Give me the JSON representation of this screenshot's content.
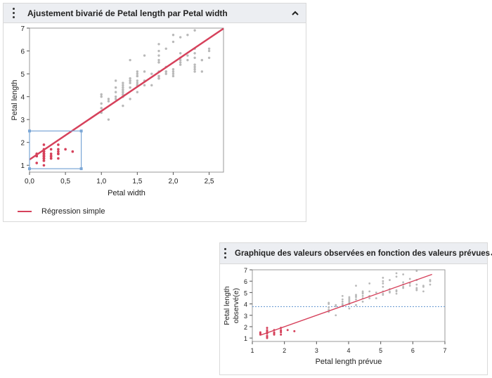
{
  "panel1": {
    "title": "Ajustement bivarié de Petal length par Petal width",
    "legend_label": "Régression simple"
  },
  "panel2": {
    "title": "Graphique des valeurs observées en fonction des valeurs prévues"
  },
  "colors": {
    "header_bg": "#eceef2",
    "regression_line": "#d6415b",
    "selected_points": "#d6415b",
    "unselected_points": "#b9b9b9",
    "selection_box": "#7aa6d6",
    "mean_line": "#6f9fd4"
  },
  "chart_data": [
    {
      "type": "scatter",
      "xlabel": "Petal width",
      "ylabel": "Petal length",
      "xlim": [
        0,
        2.7
      ],
      "ylim": [
        0.7,
        7
      ],
      "xticks": [
        "0,0",
        "0,5",
        "1,0",
        "1,5",
        "2,0",
        "2,5"
      ],
      "yticks": [
        "1",
        "2",
        "3",
        "4",
        "5",
        "6",
        "7"
      ],
      "regression_line": {
        "x": [
          0,
          2.7
        ],
        "y": [
          1.25,
          6.98
        ]
      },
      "selection_box": {
        "x": [
          0,
          0.72
        ],
        "y": [
          0.85,
          2.5
        ]
      },
      "series": [
        {
          "points": [
            [
              0.2,
              1.4
            ],
            [
              0.2,
              1.4
            ],
            [
              0.2,
              1.3
            ],
            [
              0.2,
              1.5
            ],
            [
              0.2,
              1.4
            ],
            [
              0.4,
              1.7
            ],
            [
              0.3,
              1.4
            ],
            [
              0.2,
              1.5
            ],
            [
              0.2,
              1.4
            ],
            [
              0.1,
              1.5
            ],
            [
              0.2,
              1.5
            ],
            [
              0.2,
              1.6
            ],
            [
              0.1,
              1.4
            ],
            [
              0.1,
              1.1
            ],
            [
              0.2,
              1.2
            ],
            [
              0.4,
              1.5
            ],
            [
              0.4,
              1.3
            ],
            [
              0.3,
              1.4
            ],
            [
              0.3,
              1.7
            ],
            [
              0.3,
              1.5
            ],
            [
              0.2,
              1.7
            ],
            [
              0.4,
              1.5
            ],
            [
              0.2,
              1.0
            ],
            [
              0.5,
              1.7
            ],
            [
              0.2,
              1.9
            ],
            [
              0.2,
              1.6
            ],
            [
              0.4,
              1.6
            ],
            [
              0.2,
              1.5
            ],
            [
              0.2,
              1.4
            ],
            [
              0.2,
              1.6
            ],
            [
              0.2,
              1.6
            ],
            [
              0.4,
              1.5
            ],
            [
              0.1,
              1.5
            ],
            [
              0.2,
              1.4
            ],
            [
              0.2,
              1.5
            ],
            [
              0.2,
              1.2
            ],
            [
              0.2,
              1.3
            ],
            [
              0.1,
              1.4
            ],
            [
              0.2,
              1.3
            ],
            [
              0.2,
              1.5
            ],
            [
              0.3,
              1.3
            ],
            [
              0.3,
              1.3
            ],
            [
              0.2,
              1.3
            ],
            [
              0.6,
              1.6
            ],
            [
              0.4,
              1.9
            ],
            [
              0.3,
              1.4
            ],
            [
              0.2,
              1.6
            ],
            [
              0.2,
              1.4
            ],
            [
              0.2,
              1.5
            ],
            [
              0.2,
              1.4
            ]
          ]
        },
        {
          "points": [
            [
              1.4,
              4.7
            ],
            [
              1.5,
              4.5
            ],
            [
              1.5,
              4.9
            ],
            [
              1.3,
              4.0
            ],
            [
              1.5,
              4.6
            ],
            [
              1.3,
              4.5
            ],
            [
              1.6,
              4.7
            ],
            [
              1.0,
              3.3
            ],
            [
              1.3,
              4.6
            ],
            [
              1.4,
              3.9
            ],
            [
              1.0,
              3.5
            ],
            [
              1.5,
              4.2
            ],
            [
              1.0,
              4.0
            ],
            [
              1.4,
              4.7
            ],
            [
              1.3,
              3.6
            ],
            [
              1.4,
              4.4
            ],
            [
              1.5,
              4.5
            ],
            [
              1.0,
              4.1
            ],
            [
              1.5,
              4.5
            ],
            [
              1.1,
              3.9
            ],
            [
              1.8,
              4.8
            ],
            [
              1.3,
              4.0
            ],
            [
              1.5,
              4.9
            ],
            [
              1.2,
              4.7
            ],
            [
              1.3,
              4.3
            ],
            [
              1.4,
              4.4
            ],
            [
              1.4,
              4.8
            ],
            [
              1.7,
              5.0
            ],
            [
              1.5,
              4.5
            ],
            [
              1.0,
              3.5
            ],
            [
              1.1,
              3.8
            ],
            [
              1.0,
              3.7
            ],
            [
              1.2,
              3.9
            ],
            [
              1.6,
              5.1
            ],
            [
              1.5,
              4.5
            ],
            [
              1.6,
              4.5
            ],
            [
              1.5,
              4.7
            ],
            [
              1.3,
              4.4
            ],
            [
              1.3,
              4.1
            ],
            [
              1.3,
              4.0
            ],
            [
              1.2,
              4.4
            ],
            [
              1.4,
              4.6
            ],
            [
              1.2,
              4.0
            ],
            [
              1.0,
              3.3
            ],
            [
              1.3,
              4.2
            ],
            [
              1.2,
              4.2
            ],
            [
              1.3,
              4.2
            ],
            [
              1.3,
              4.3
            ],
            [
              1.1,
              3.0
            ],
            [
              1.3,
              4.1
            ],
            [
              2.5,
              6.0
            ],
            [
              1.9,
              5.1
            ],
            [
              2.1,
              5.9
            ],
            [
              1.8,
              5.6
            ],
            [
              2.2,
              5.8
            ],
            [
              2.1,
              6.6
            ],
            [
              1.7,
              4.5
            ],
            [
              1.8,
              6.3
            ],
            [
              1.8,
              5.8
            ],
            [
              2.5,
              6.1
            ],
            [
              2.0,
              5.1
            ],
            [
              1.9,
              5.3
            ],
            [
              2.1,
              5.5
            ],
            [
              2.0,
              5.0
            ],
            [
              2.4,
              5.1
            ],
            [
              2.3,
              5.3
            ],
            [
              1.8,
              5.5
            ],
            [
              2.2,
              6.7
            ],
            [
              2.3,
              6.9
            ],
            [
              1.5,
              5.0
            ],
            [
              2.3,
              5.7
            ],
            [
              2.0,
              4.9
            ],
            [
              2.0,
              6.7
            ],
            [
              1.8,
              4.9
            ],
            [
              2.1,
              5.7
            ],
            [
              1.8,
              6.0
            ],
            [
              1.8,
              4.8
            ],
            [
              1.8,
              4.9
            ],
            [
              2.1,
              5.6
            ],
            [
              1.6,
              5.8
            ],
            [
              1.9,
              6.1
            ],
            [
              2.0,
              6.4
            ],
            [
              2.2,
              5.6
            ],
            [
              1.5,
              5.1
            ],
            [
              1.4,
              5.6
            ],
            [
              2.3,
              6.1
            ],
            [
              2.4,
              5.6
            ],
            [
              1.8,
              5.5
            ],
            [
              1.8,
              4.8
            ],
            [
              2.1,
              5.4
            ],
            [
              2.4,
              5.6
            ],
            [
              2.3,
              5.1
            ],
            [
              1.9,
              5.1
            ],
            [
              2.3,
              5.9
            ],
            [
              2.5,
              5.7
            ],
            [
              2.3,
              5.2
            ],
            [
              1.9,
              5.0
            ],
            [
              2.0,
              5.2
            ],
            [
              2.3,
              5.4
            ],
            [
              1.8,
              5.1
            ]
          ]
        }
      ]
    },
    {
      "type": "scatter",
      "xlabel": "Petal length prévue",
      "ylabel": "Petal length observé(e)",
      "ylabel_lines": [
        "Petal length",
        "observé(e)"
      ],
      "xlim": [
        1,
        7
      ],
      "ylim": [
        0.7,
        7
      ],
      "xticks": [
        "1",
        "2",
        "3",
        "4",
        "5",
        "6",
        "7"
      ],
      "yticks": [
        "1",
        "2",
        "3",
        "4",
        "5",
        "6",
        "7"
      ],
      "fit_line": {
        "x": [
          1.25,
          6.6
        ],
        "y": [
          1.25,
          6.6
        ]
      },
      "mean_line_y": 3.76,
      "series": [
        {
          "points": [
            [
              1.25,
              1.4
            ],
            [
              1.25,
              1.3
            ],
            [
              1.25,
              1.5
            ],
            [
              1.46,
              1.4
            ],
            [
              1.46,
              1.5
            ],
            [
              1.46,
              1.6
            ],
            [
              1.46,
              1.1
            ],
            [
              1.46,
              1.2
            ],
            [
              1.46,
              1.0
            ],
            [
              1.46,
              1.9
            ],
            [
              1.46,
              1.7
            ],
            [
              1.68,
              1.4
            ],
            [
              1.68,
              1.7
            ],
            [
              1.68,
              1.5
            ],
            [
              1.68,
              1.3
            ],
            [
              1.89,
              1.7
            ],
            [
              1.89,
              1.5
            ],
            [
              1.89,
              1.6
            ],
            [
              1.89,
              1.9
            ],
            [
              1.89,
              1.3
            ],
            [
              2.1,
              1.7
            ],
            [
              2.31,
              1.6
            ]
          ]
        },
        {
          "points": [
            [
              3.38,
              3.3
            ],
            [
              3.38,
              3.5
            ],
            [
              3.38,
              4.0
            ],
            [
              3.38,
              4.1
            ],
            [
              3.38,
              3.7
            ],
            [
              3.6,
              3.0
            ],
            [
              3.6,
              3.8
            ],
            [
              3.6,
              3.9
            ],
            [
              3.81,
              3.9
            ],
            [
              3.81,
              4.0
            ],
            [
              3.81,
              4.2
            ],
            [
              3.81,
              4.7
            ],
            [
              3.81,
              4.4
            ],
            [
              4.02,
              4.0
            ],
            [
              4.02,
              4.3
            ],
            [
              4.02,
              4.5
            ],
            [
              4.02,
              4.6
            ],
            [
              4.02,
              4.4
            ],
            [
              4.02,
              4.1
            ],
            [
              4.02,
              4.2
            ],
            [
              4.02,
              3.6
            ],
            [
              4.23,
              4.7
            ],
            [
              4.23,
              3.9
            ],
            [
              4.23,
              4.4
            ],
            [
              4.23,
              4.6
            ],
            [
              4.23,
              4.8
            ],
            [
              4.23,
              5.6
            ],
            [
              4.44,
              4.5
            ],
            [
              4.44,
              4.9
            ],
            [
              4.44,
              4.2
            ],
            [
              4.44,
              4.7
            ],
            [
              4.44,
              5.0
            ],
            [
              4.44,
              5.1
            ],
            [
              4.65,
              4.7
            ],
            [
              4.65,
              5.1
            ],
            [
              4.65,
              4.5
            ],
            [
              4.65,
              5.8
            ],
            [
              4.86,
              5.0
            ],
            [
              4.86,
              4.5
            ],
            [
              5.07,
              4.8
            ],
            [
              5.07,
              5.8
            ],
            [
              5.07,
              6.3
            ],
            [
              5.07,
              4.9
            ],
            [
              5.07,
              5.5
            ],
            [
              5.07,
              6.0
            ],
            [
              5.07,
              5.1
            ],
            [
              5.28,
              5.1
            ],
            [
              5.28,
              5.3
            ],
            [
              5.28,
              6.1
            ],
            [
              5.28,
              5.0
            ],
            [
              5.49,
              5.1
            ],
            [
              5.49,
              4.9
            ],
            [
              5.49,
              6.7
            ],
            [
              5.49,
              5.2
            ],
            [
              5.49,
              6.4
            ],
            [
              5.7,
              5.9
            ],
            [
              5.7,
              6.6
            ],
            [
              5.7,
              5.5
            ],
            [
              5.7,
              5.7
            ],
            [
              5.7,
              5.4
            ],
            [
              5.91,
              5.8
            ],
            [
              5.91,
              5.6
            ],
            [
              5.91,
              6.2
            ],
            [
              6.12,
              5.7
            ],
            [
              6.12,
              5.3
            ],
            [
              6.12,
              6.9
            ],
            [
              6.12,
              6.1
            ],
            [
              6.12,
              5.2
            ],
            [
              6.12,
              5.4
            ],
            [
              6.33,
              5.1
            ],
            [
              6.33,
              5.6
            ],
            [
              6.33,
              5.5
            ],
            [
              6.54,
              6.0
            ],
            [
              6.54,
              6.1
            ],
            [
              6.54,
              5.7
            ]
          ]
        }
      ]
    }
  ]
}
